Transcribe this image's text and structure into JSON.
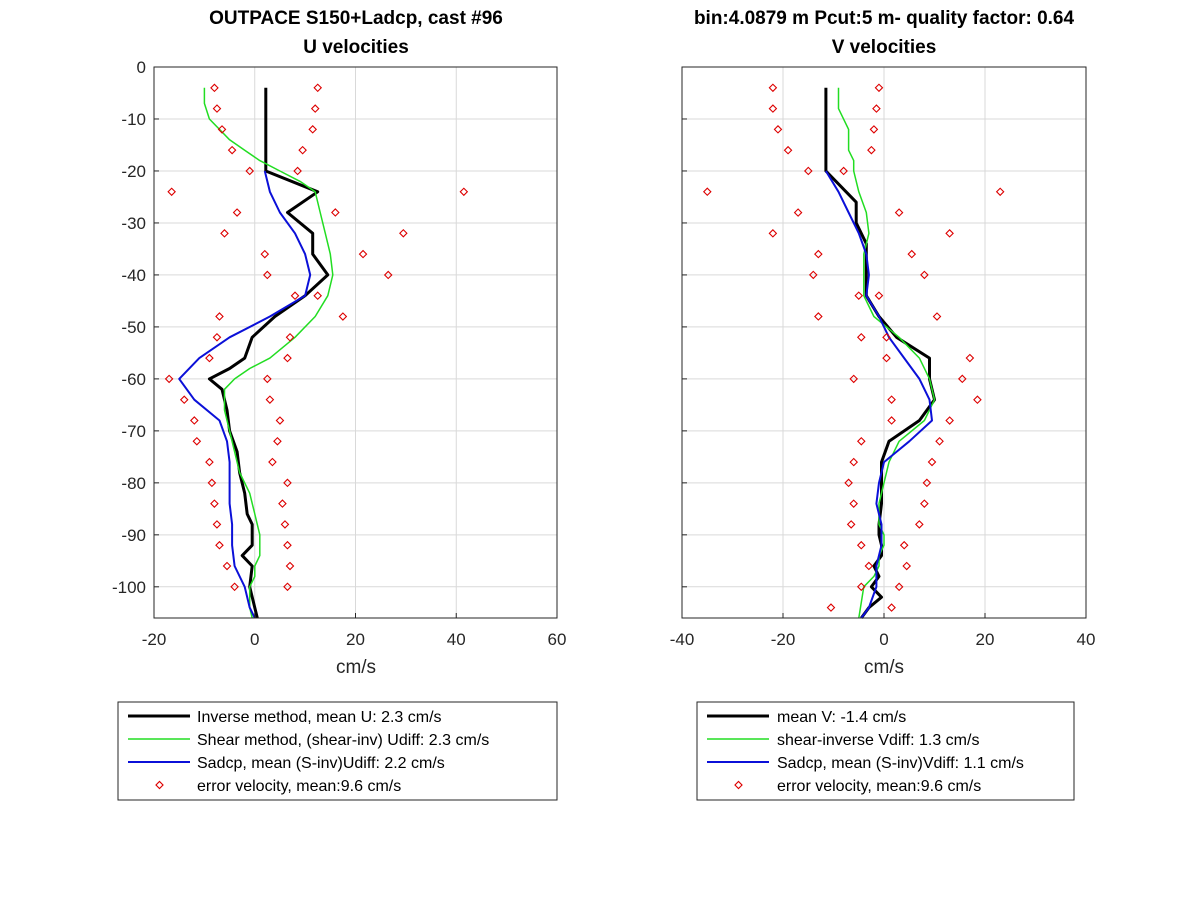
{
  "figure": {
    "title_left_line1": "OUTPACE S150+Ladcp, cast #96",
    "title_left_line2": "U velocities",
    "title_right_line1": "bin:4.0879 m  Pcut:5 m- quality factor:  0.64",
    "title_right_line2": "V velocities"
  },
  "colors": {
    "inverse": "#000000",
    "shear": "#22dd22",
    "sadcp": "#0b10d8",
    "error": "#dd0000",
    "grid": "#d9d9d9",
    "axis": "#262626"
  },
  "chart_data": [
    {
      "type": "line",
      "panel": "U velocities",
      "xlabel": "cm/s",
      "ylabel": "",
      "xlim": [
        -20,
        60
      ],
      "ylim": [
        -106,
        0
      ],
      "xticks": [
        -20,
        0,
        20,
        40,
        60
      ],
      "yticks": [
        0,
        -10,
        -20,
        -30,
        -40,
        -50,
        -60,
        -70,
        -80,
        -90,
        -100
      ],
      "grid": true,
      "legend_position": "below",
      "legend": [
        "Inverse method, mean U:  2.3 cm/s",
        "Shear method, (shear-inv)  Udiff:  2.3 cm/s",
        "Sadcp, mean (S-inv)Udiff: 2.2 cm/s",
        "error velocity, mean:9.6 cm/s"
      ],
      "series": [
        {
          "key": "inverse",
          "style": "line",
          "x": [
            2.2,
            2.2,
            2.2,
            2.2,
            2.2,
            2.2,
            12.5,
            6.5,
            11.5,
            11.5,
            14.5,
            10,
            4,
            -0.5,
            -2,
            -5,
            -9,
            -6.5,
            -5.5,
            -5,
            -3.5,
            -3,
            -2,
            -1.5,
            -0.5,
            -0.5,
            -0.5,
            -2.5,
            -0.5,
            -1,
            0.5
          ],
          "y": [
            -4,
            -8,
            -12,
            -16,
            -18,
            -20,
            -24,
            -28,
            -32,
            -36,
            -40,
            -44,
            -48,
            -52,
            -56,
            -58,
            -60,
            -62,
            -66,
            -70,
            -74,
            -78,
            -82,
            -86,
            -88,
            -90,
            -92,
            -94,
            -96,
            -100,
            -106
          ]
        },
        {
          "key": "shear",
          "style": "line",
          "x": [
            -10,
            -10,
            -9,
            -7,
            -5,
            -2,
            1,
            5,
            9,
            12,
            13,
            14,
            15,
            15.5,
            14.5,
            12,
            8,
            3,
            -1,
            -4,
            -6,
            -6,
            -5,
            -4,
            -3,
            -1,
            0,
            0.5,
            1,
            1,
            1,
            0,
            0,
            -1,
            -1,
            -0.5
          ],
          "y": [
            -4,
            -7,
            -10,
            -12,
            -14,
            -16,
            -18,
            -20,
            -22,
            -24,
            -28,
            -32,
            -36,
            -40,
            -44,
            -48,
            -52,
            -56,
            -58,
            -60,
            -62,
            -66,
            -70,
            -74,
            -78,
            -82,
            -86,
            -88,
            -90,
            -92,
            -94,
            -96,
            -98,
            -100,
            -104,
            -106
          ]
        },
        {
          "key": "sadcp",
          "style": "line",
          "x": [
            2,
            3,
            5,
            8,
            10,
            11,
            10,
            3,
            -5,
            -11,
            -15,
            -12,
            -7,
            -5.5,
            -5,
            -5,
            -5,
            -4.5,
            -4.5,
            -4,
            -2,
            -1,
            0
          ],
          "y": [
            -20,
            -24,
            -28,
            -32,
            -36,
            -40,
            -44,
            -48,
            -52,
            -56,
            -60,
            -64,
            -68,
            -72,
            -76,
            -80,
            -84,
            -88,
            -92,
            -96,
            -100,
            -104,
            -106
          ]
        },
        {
          "key": "error",
          "style": "markers",
          "x": [
            -8,
            12.5,
            -7.5,
            12,
            -6.5,
            11.5,
            -4.5,
            9.5,
            -1,
            8.5,
            -16.5,
            41.5,
            -3.5,
            16,
            -6,
            29.5,
            2,
            21.5,
            2.5,
            26.5,
            8,
            12.5,
            -7,
            17.5,
            -7.5,
            7,
            -9,
            6.5,
            -17,
            2.5,
            -14,
            3,
            -12,
            5,
            -11.5,
            4.5,
            -9,
            3.5,
            -8.5,
            6.5,
            -8,
            5.5,
            -7.5,
            6,
            -7,
            6.5,
            -5.5,
            7,
            -4,
            6.5
          ],
          "y": [
            -4,
            -4,
            -8,
            -8,
            -12,
            -12,
            -16,
            -16,
            -20,
            -20,
            -24,
            -24,
            -28,
            -28,
            -32,
            -32,
            -36,
            -36,
            -40,
            -40,
            -44,
            -44,
            -48,
            -48,
            -52,
            -52,
            -56,
            -56,
            -60,
            -60,
            -64,
            -64,
            -68,
            -68,
            -72,
            -72,
            -76,
            -76,
            -80,
            -80,
            -84,
            -84,
            -88,
            -88,
            -92,
            -92,
            -96,
            -96,
            -100,
            -100
          ]
        }
      ]
    },
    {
      "type": "line",
      "panel": "V velocities",
      "xlabel": "cm/s",
      "ylabel": "",
      "xlim": [
        -40,
        40
      ],
      "ylim": [
        -106,
        0
      ],
      "xticks": [
        -40,
        -20,
        0,
        20,
        40
      ],
      "yticks": [
        0,
        -10,
        -20,
        -30,
        -40,
        -50,
        -60,
        -70,
        -80,
        -90,
        -100
      ],
      "grid": true,
      "legend_position": "below",
      "legend": [
        "mean V:  -1.4 cm/s",
        "shear-inverse Vdiff:  1.3 cm/s",
        "Sadcp, mean (S-inv)Vdiff: 1.1 cm/s",
        "error velocity, mean:9.6 cm/s"
      ],
      "series": [
        {
          "key": "inverse",
          "style": "line",
          "x": [
            -11.5,
            -11.5,
            -11.5,
            -11.5,
            -11.5,
            -11.5,
            -7.5,
            -5.5,
            -5.5,
            -3.5,
            -3.5,
            -3.5,
            -1,
            2.5,
            9,
            9,
            10,
            7,
            1,
            -0.5,
            -0.5,
            -0.5,
            -1,
            -1,
            -0.5,
            -0.5,
            -2,
            -1,
            -2.5,
            -0.5,
            -3,
            -4.5
          ],
          "y": [
            -4,
            -8,
            -12,
            -16,
            -18,
            -20,
            -24,
            -26,
            -30,
            -34,
            -38,
            -44,
            -48,
            -52,
            -56,
            -60,
            -64,
            -68,
            -72,
            -76,
            -80,
            -84,
            -88,
            -90,
            -92,
            -94,
            -96,
            -98,
            -100,
            -102,
            -104,
            -106
          ]
        },
        {
          "key": "shear",
          "style": "line",
          "x": [
            -9,
            -9,
            -7,
            -7,
            -6,
            -6,
            -5,
            -3.5,
            -3,
            -4,
            -4,
            -4,
            -2,
            3,
            7,
            9,
            10,
            8,
            3,
            1,
            0,
            -1,
            -1,
            0,
            0,
            -1,
            -1,
            -2,
            -4,
            -5
          ],
          "y": [
            -4,
            -8,
            -12,
            -16,
            -18,
            -20,
            -24,
            -28,
            -32,
            -36,
            -40,
            -44,
            -48,
            -52,
            -56,
            -60,
            -64,
            -68,
            -72,
            -76,
            -80,
            -84,
            -88,
            -90,
            -92,
            -94,
            -96,
            -98,
            -100,
            -106
          ]
        },
        {
          "key": "sadcp",
          "style": "line",
          "x": [
            -11.5,
            -9,
            -7,
            -5,
            -3.5,
            -3,
            -3.5,
            -1,
            1,
            4,
            7,
            9,
            9.5,
            5,
            0,
            -1,
            -1.5,
            -0.5,
            -0.5,
            -1.5,
            -1.5,
            -3,
            -4.5
          ],
          "y": [
            -20,
            -24,
            -28,
            -32,
            -36,
            -40,
            -44,
            -48,
            -52,
            -56,
            -60,
            -64,
            -68,
            -72,
            -76,
            -80,
            -84,
            -88,
            -92,
            -96,
            -100,
            -104,
            -106
          ]
        },
        {
          "key": "error",
          "style": "markers",
          "x": [
            -22,
            -1,
            -22,
            -1.5,
            -21,
            -2,
            -19,
            -2.5,
            -15,
            -8,
            -35,
            23,
            -17,
            3,
            -22,
            13,
            -13,
            5.5,
            -14,
            8,
            -5,
            -1,
            -13,
            10.5,
            -4.5,
            0.5,
            0.5,
            17,
            -6,
            15.5,
            1.5,
            18.5,
            1.5,
            13,
            -4.5,
            11,
            -6,
            9.5,
            -7,
            8.5,
            -6,
            8,
            -6.5,
            7,
            -4.5,
            4,
            -3,
            4.5,
            -4.5,
            3,
            -10.5,
            1.5
          ],
          "y": [
            -4,
            -4,
            -8,
            -8,
            -12,
            -12,
            -16,
            -16,
            -20,
            -20,
            -24,
            -24,
            -28,
            -28,
            -32,
            -32,
            -36,
            -36,
            -40,
            -40,
            -44,
            -44,
            -48,
            -48,
            -52,
            -52,
            -56,
            -56,
            -60,
            -60,
            -64,
            -64,
            -68,
            -68,
            -72,
            -72,
            -76,
            -76,
            -80,
            -80,
            -84,
            -84,
            -88,
            -88,
            -92,
            -92,
            -96,
            -96,
            -100,
            -100,
            -104,
            -104
          ]
        }
      ]
    }
  ]
}
